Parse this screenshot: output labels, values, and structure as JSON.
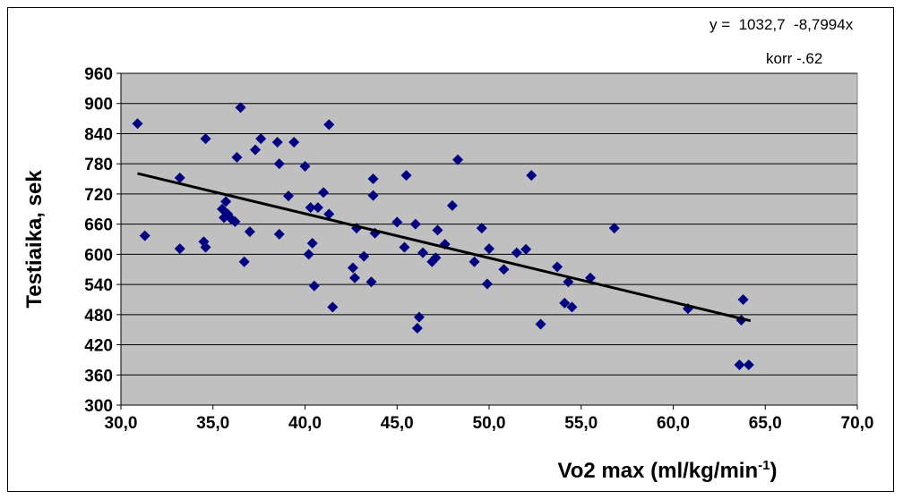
{
  "chart_data": {
    "type": "scatter",
    "title": "",
    "xlabel": "Vo2 max (ml/kg/min",
    "xlabel_superscript": "-1",
    "xlabel_suffix": ")",
    "ylabel": "Testiaika, sek",
    "xlim": [
      30,
      70
    ],
    "ylim": [
      300,
      960
    ],
    "x_ticks": [
      "30,0",
      "35,0",
      "40,0",
      "45,0",
      "50,0",
      "55,0",
      "60,0",
      "65,0",
      "70,0"
    ],
    "y_ticks": [
      "960",
      "900",
      "840",
      "780",
      "720",
      "660",
      "600",
      "540",
      "480",
      "420",
      "360",
      "300"
    ],
    "x_tick_values": [
      30,
      35,
      40,
      45,
      50,
      55,
      60,
      65,
      70
    ],
    "y_tick_values": [
      960,
      900,
      840,
      780,
      720,
      660,
      600,
      540,
      480,
      420,
      360,
      300
    ],
    "grid": true,
    "plot_background": "#c0c0c0",
    "marker_color": "#000080",
    "trendline": {
      "equation": "y =  1032,7  -8,7994x",
      "correlation_label": "korr -.62",
      "x_range": [
        30.9,
        64.2
      ],
      "intercept": 1032.7,
      "slope": -8.7994,
      "color": "#000000"
    },
    "series": [
      {
        "points": [
          [
            30.9,
            860
          ],
          [
            31.3,
            637
          ],
          [
            33.2,
            752
          ],
          [
            33.2,
            611
          ],
          [
            34.5,
            625
          ],
          [
            34.6,
            614
          ],
          [
            34.6,
            830
          ],
          [
            35.5,
            690
          ],
          [
            35.6,
            673
          ],
          [
            35.7,
            705
          ],
          [
            35.8,
            680
          ],
          [
            36.0,
            670
          ],
          [
            36.2,
            665
          ],
          [
            36.3,
            793
          ],
          [
            36.5,
            892
          ],
          [
            36.7,
            585
          ],
          [
            37.0,
            645
          ],
          [
            37.3,
            808
          ],
          [
            37.6,
            830
          ],
          [
            38.5,
            823
          ],
          [
            38.6,
            780
          ],
          [
            38.6,
            640
          ],
          [
            39.1,
            716
          ],
          [
            39.4,
            823
          ],
          [
            40.0,
            775
          ],
          [
            40.2,
            600
          ],
          [
            40.3,
            693
          ],
          [
            40.4,
            622
          ],
          [
            40.5,
            537
          ],
          [
            40.7,
            693
          ],
          [
            41.0,
            723
          ],
          [
            41.3,
            858
          ],
          [
            41.3,
            680
          ],
          [
            41.5,
            495
          ],
          [
            42.6,
            573
          ],
          [
            42.7,
            553
          ],
          [
            42.8,
            652
          ],
          [
            43.2,
            596
          ],
          [
            43.6,
            545
          ],
          [
            43.7,
            750
          ],
          [
            43.7,
            717
          ],
          [
            43.8,
            642
          ],
          [
            45.0,
            664
          ],
          [
            45.4,
            614
          ],
          [
            45.5,
            757
          ],
          [
            46.0,
            660
          ],
          [
            46.1,
            453
          ],
          [
            46.2,
            475
          ],
          [
            46.4,
            603
          ],
          [
            46.9,
            585
          ],
          [
            47.1,
            593
          ],
          [
            47.2,
            648
          ],
          [
            47.6,
            620
          ],
          [
            48.0,
            697
          ],
          [
            48.3,
            788
          ],
          [
            49.2,
            585
          ],
          [
            49.6,
            652
          ],
          [
            49.9,
            541
          ],
          [
            50.0,
            611
          ],
          [
            50.8,
            570
          ],
          [
            51.5,
            603
          ],
          [
            52.0,
            610
          ],
          [
            52.3,
            757
          ],
          [
            52.8,
            461
          ],
          [
            53.7,
            575
          ],
          [
            54.1,
            503
          ],
          [
            54.3,
            545
          ],
          [
            54.5,
            495
          ],
          [
            55.5,
            553
          ],
          [
            56.8,
            652
          ],
          [
            60.8,
            492
          ],
          [
            63.6,
            380
          ],
          [
            63.7,
            469
          ],
          [
            63.8,
            510
          ],
          [
            64.1,
            380
          ]
        ]
      }
    ]
  }
}
